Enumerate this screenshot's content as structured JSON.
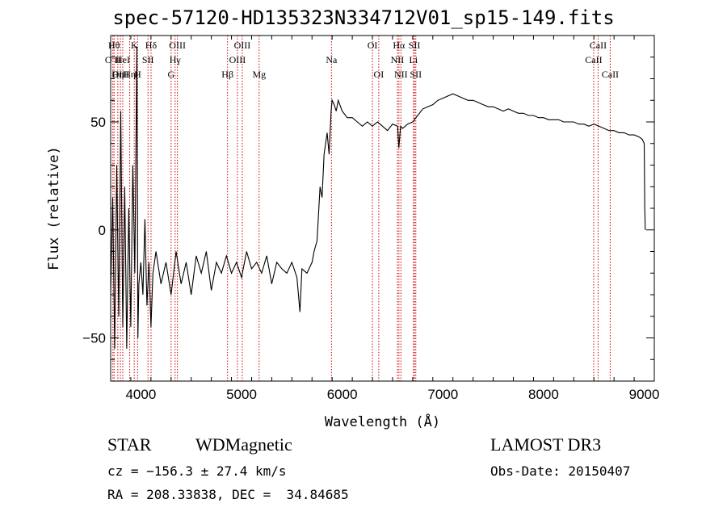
{
  "title": "spec-57120-HD135323N334712V01_sp15-149.fits",
  "info": {
    "class": "STAR",
    "subclass": "WDMagnetic",
    "survey": "LAMOST DR3",
    "cz": "cz = −156.3 ± 27.4 km/s",
    "obs_date": "Obs-Date: 20150407",
    "radec": "RA = 208.33838, DEC =  34.84685"
  },
  "chart_data": {
    "type": "line",
    "title": "spec-57120-HD135323N334712V01_sp15-149.fits",
    "xlabel": "Wavelength (Å)",
    "ylabel": "Flux (relative)",
    "xlim": [
      3700,
      9100
    ],
    "ylim": [
      -70,
      90
    ],
    "xticks": [
      4000,
      5000,
      6000,
      7000,
      8000,
      9000
    ],
    "yticks": [
      -50,
      0,
      50
    ],
    "line_color": "#000000",
    "marker_color": "#cc0000",
    "series": [
      {
        "x": [
          3700,
          3720,
          3740,
          3760,
          3780,
          3800,
          3820,
          3840,
          3860,
          3880,
          3900,
          3920,
          3940,
          3960,
          3970,
          3980,
          4000,
          4020,
          4040,
          4060,
          4080,
          4100,
          4120,
          4150,
          4200,
          4250,
          4300,
          4350,
          4400,
          4450,
          4500,
          4550,
          4600,
          4650,
          4700,
          4750,
          4800,
          4850,
          4900,
          4950,
          5000,
          5050,
          5100,
          5150,
          5200,
          5250,
          5300,
          5350,
          5400,
          5450,
          5500,
          5550,
          5580,
          5600,
          5650,
          5700,
          5720,
          5750,
          5780,
          5800,
          5820,
          5850,
          5870,
          5890,
          5900,
          5920,
          5940,
          5960,
          6000,
          6050,
          6100,
          6150,
          6200,
          6250,
          6300,
          6350,
          6400,
          6450,
          6500,
          6550,
          6563,
          6580,
          6600,
          6650,
          6700,
          6750,
          6800,
          6850,
          6900,
          6950,
          7000,
          7050,
          7100,
          7150,
          7200,
          7250,
          7300,
          7350,
          7400,
          7450,
          7500,
          7550,
          7600,
          7650,
          7700,
          7750,
          7800,
          7850,
          7900,
          7950,
          8000,
          8050,
          8100,
          8150,
          8200,
          8250,
          8300,
          8350,
          8400,
          8450,
          8500,
          8550,
          8600,
          8650,
          8700,
          8750,
          8800,
          8850,
          8900,
          8950,
          8980,
          9000,
          9005,
          9010
        ],
        "y": [
          -30,
          15,
          -55,
          30,
          -40,
          55,
          -45,
          20,
          -55,
          10,
          -45,
          30,
          -20,
          85,
          -50,
          -25,
          -15,
          -30,
          5,
          -35,
          -15,
          -45,
          -20,
          -10,
          -25,
          -15,
          -30,
          -10,
          -25,
          -15,
          -30,
          -12,
          -20,
          -10,
          -28,
          -15,
          -20,
          -12,
          -20,
          -15,
          -22,
          -10,
          -18,
          -15,
          -20,
          -12,
          -25,
          -15,
          -18,
          -20,
          -15,
          -22,
          -38,
          -18,
          -20,
          -15,
          -10,
          -5,
          20,
          15,
          35,
          45,
          35,
          55,
          60,
          58,
          55,
          60,
          55,
          52,
          52,
          50,
          48,
          50,
          48,
          50,
          48,
          46,
          49,
          48,
          38,
          48,
          47,
          49,
          50,
          53,
          56,
          57,
          58,
          60,
          61,
          62,
          63,
          62,
          61,
          60,
          60,
          59,
          58,
          57,
          57,
          56,
          55,
          56,
          55,
          54,
          54,
          53,
          53,
          52,
          52,
          51,
          51,
          51,
          50,
          50,
          50,
          49,
          49,
          48,
          49,
          48,
          47,
          46,
          46,
          45,
          45,
          44,
          44,
          43,
          42,
          40,
          10,
          0
        ]
      }
    ],
    "lines": [
      {
        "x": 3722,
        "label": "O II",
        "row": 1
      },
      {
        "x": 3734,
        "label": "Hθ",
        "row": 0
      },
      {
        "x": 3771,
        "label": "Hη",
        "row": 2
      },
      {
        "x": 3797,
        "label": "OIII",
        "row": 2
      },
      {
        "x": 3820,
        "label": "HeI",
        "row": 1
      },
      {
        "x": 3889,
        "label": "Hη",
        "row": 2
      },
      {
        "x": 3934,
        "label": "K",
        "row": 0
      },
      {
        "x": 3968,
        "label": "H",
        "row": 2
      },
      {
        "x": 4101,
        "label": "Hδ",
        "row": 0
      },
      {
        "x": 4071,
        "label": "SII",
        "row": 1
      },
      {
        "x": 4300,
        "label": "G",
        "row": 2
      },
      {
        "x": 4340,
        "label": "Hγ",
        "row": 1
      },
      {
        "x": 4363,
        "label": "OIII",
        "row": 0
      },
      {
        "x": 4861,
        "label": "Hβ",
        "row": 2
      },
      {
        "x": 4959,
        "label": "OIII",
        "row": 1
      },
      {
        "x": 5007,
        "label": "OIII",
        "row": 0
      },
      {
        "x": 5175,
        "label": "Mg",
        "row": 2
      },
      {
        "x": 5893,
        "label": "Na",
        "row": 1
      },
      {
        "x": 6300,
        "label": "OI",
        "row": 0
      },
      {
        "x": 6363,
        "label": "OI",
        "row": 2
      },
      {
        "x": 6548,
        "label": "NII",
        "row": 1
      },
      {
        "x": 6563,
        "label": "Hα",
        "row": 0
      },
      {
        "x": 6583,
        "label": "NII",
        "row": 2
      },
      {
        "x": 6708,
        "label": "Li",
        "row": 1
      },
      {
        "x": 6717,
        "label": "SII",
        "row": 0
      },
      {
        "x": 6731,
        "label": "SII",
        "row": 2
      },
      {
        "x": 8498,
        "label": "CaII",
        "row": 1
      },
      {
        "x": 8542,
        "label": "CaII",
        "row": 0
      },
      {
        "x": 8662,
        "label": "CaII",
        "row": 2
      }
    ]
  }
}
